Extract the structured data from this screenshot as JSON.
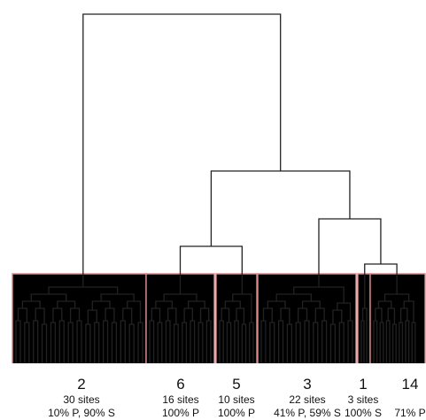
{
  "colors": {
    "line": "#222222",
    "box": "#d98a8a",
    "text": "#111111"
  },
  "clusters": [
    {
      "number": "2",
      "sites": "30 sites",
      "composition": "10% P, 90% S",
      "leaves": 30
    },
    {
      "number": "6",
      "sites": "16 sites",
      "composition": "100% P",
      "leaves": 16
    },
    {
      "number": "5",
      "sites": "10 sites",
      "composition": "100% P",
      "leaves": 10
    },
    {
      "number": "3",
      "sites": "22 sites",
      "composition": "41% P, 59% S",
      "leaves": 22
    },
    {
      "number": "1",
      "sites": "3 sites",
      "composition": "100% S",
      "leaves": 3
    },
    {
      "number": "14",
      "sites": "",
      "composition": "71% P",
      "leaves": 16
    }
  ]
}
